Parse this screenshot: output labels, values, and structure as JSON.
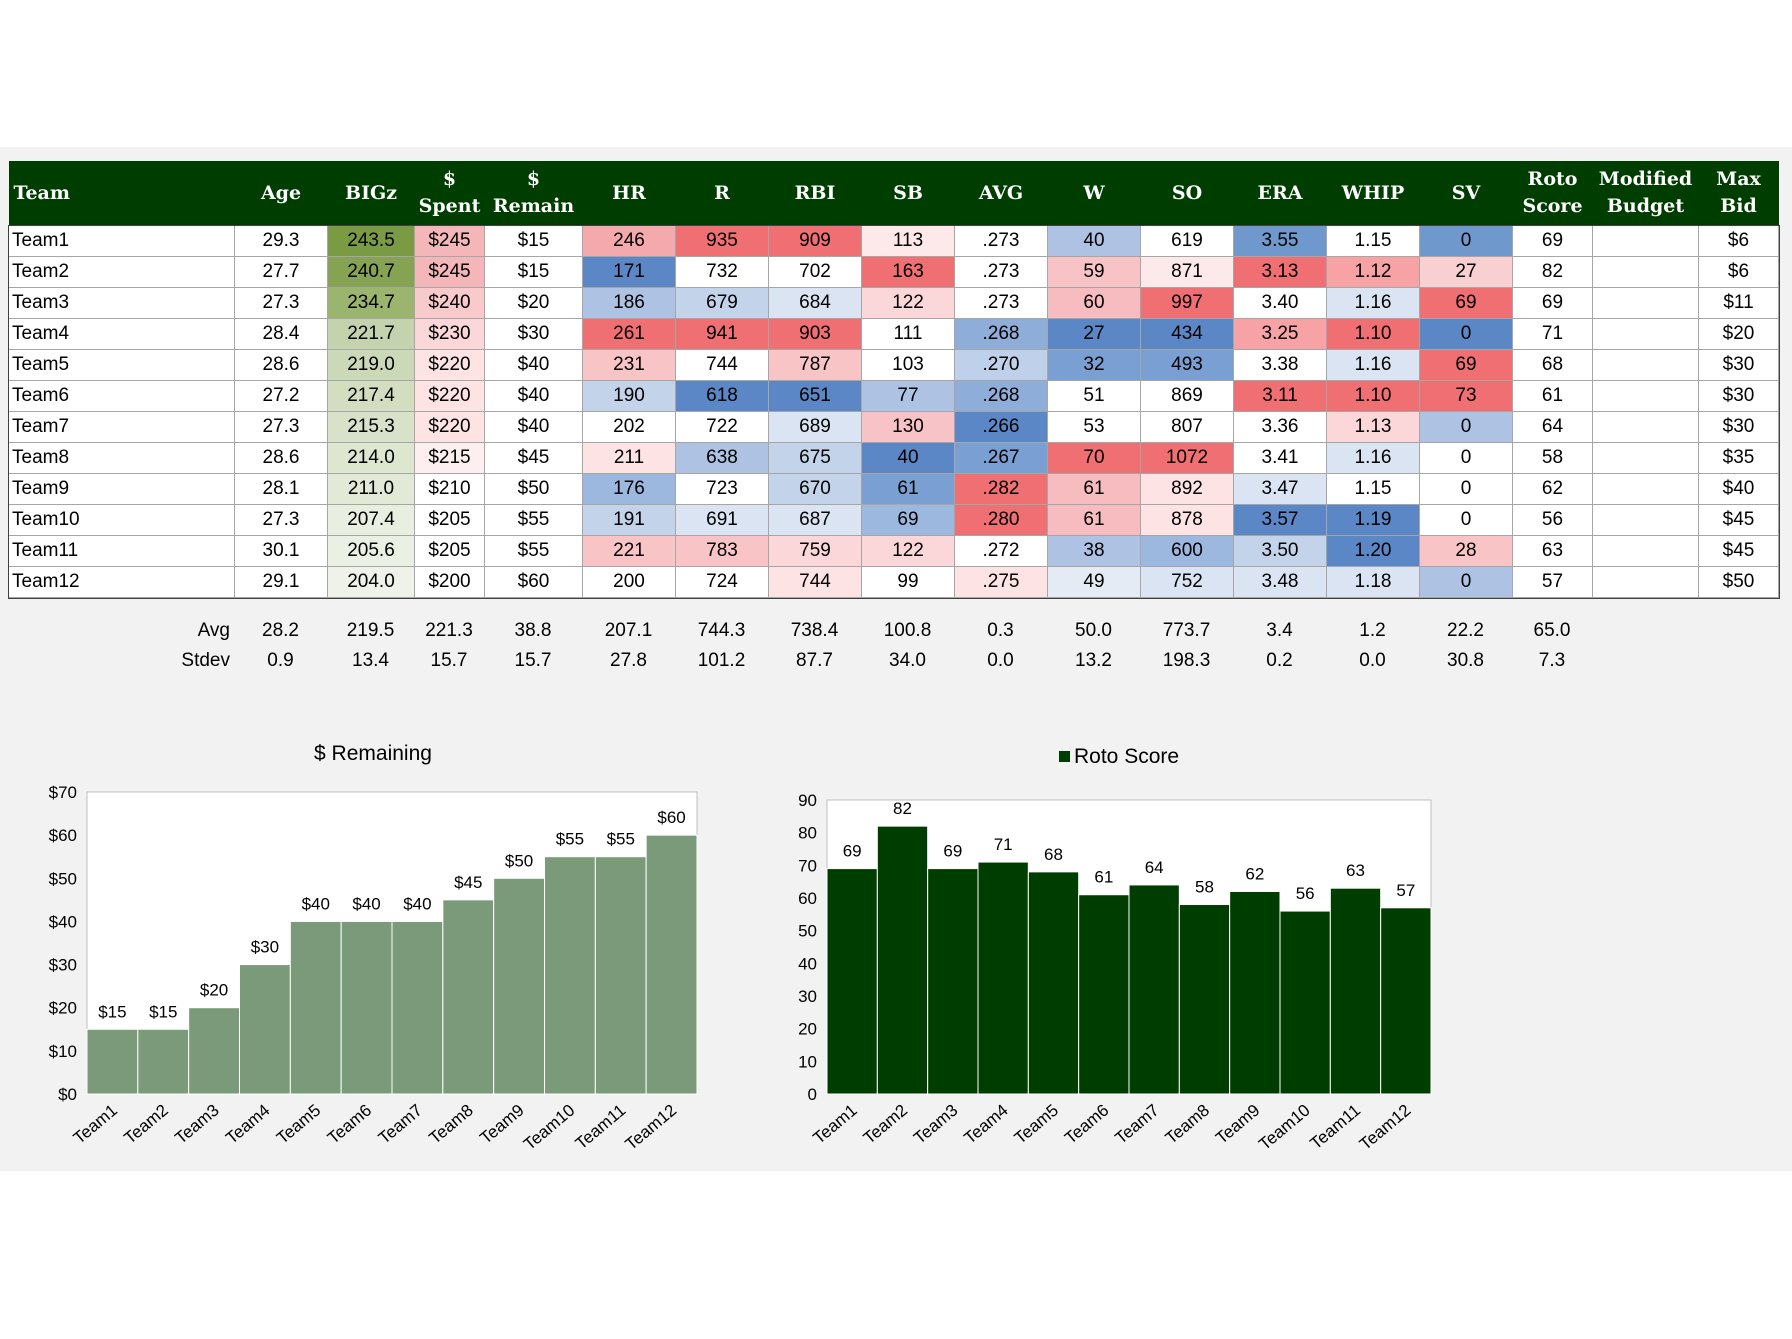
{
  "table": {
    "columns": [
      "Team",
      "Age",
      "BIGz",
      "$\nSpent",
      "$\nRemain",
      "HR",
      "R",
      "RBI",
      "SB",
      "AVG",
      "W",
      "SO",
      "ERA",
      "WHIP",
      "SV",
      "Roto\nScore",
      "Modified\nBudget",
      "Max\nBid"
    ],
    "rows": [
      [
        "Team1",
        "29.3",
        "243.5",
        "$245",
        "$15",
        "246",
        "935",
        "909",
        "113",
        ".273",
        "40",
        "619",
        "3.55",
        "1.15",
        "0",
        "69",
        "",
        "$6"
      ],
      [
        "Team2",
        "27.7",
        "240.7",
        "$245",
        "$15",
        "171",
        "732",
        "702",
        "163",
        ".273",
        "59",
        "871",
        "3.13",
        "1.12",
        "27",
        "82",
        "",
        "$6"
      ],
      [
        "Team3",
        "27.3",
        "234.7",
        "$240",
        "$20",
        "186",
        "679",
        "684",
        "122",
        ".273",
        "60",
        "997",
        "3.40",
        "1.16",
        "69",
        "69",
        "",
        "$11"
      ],
      [
        "Team4",
        "28.4",
        "221.7",
        "$230",
        "$30",
        "261",
        "941",
        "903",
        "111",
        ".268",
        "27",
        "434",
        "3.25",
        "1.10",
        "0",
        "71",
        "",
        "$20"
      ],
      [
        "Team5",
        "28.6",
        "219.0",
        "$220",
        "$40",
        "231",
        "744",
        "787",
        "103",
        ".270",
        "32",
        "493",
        "3.38",
        "1.16",
        "69",
        "68",
        "",
        "$30"
      ],
      [
        "Team6",
        "27.2",
        "217.4",
        "$220",
        "$40",
        "190",
        "618",
        "651",
        "77",
        ".268",
        "51",
        "869",
        "3.11",
        "1.10",
        "73",
        "61",
        "",
        "$30"
      ],
      [
        "Team7",
        "27.3",
        "215.3",
        "$220",
        "$40",
        "202",
        "722",
        "689",
        "130",
        ".266",
        "53",
        "807",
        "3.36",
        "1.13",
        "0",
        "64",
        "",
        "$30"
      ],
      [
        "Team8",
        "28.6",
        "214.0",
        "$215",
        "$45",
        "211",
        "638",
        "675",
        "40",
        ".267",
        "70",
        "1072",
        "3.41",
        "1.16",
        "0",
        "58",
        "",
        "$35"
      ],
      [
        "Team9",
        "28.1",
        "211.0",
        "$210",
        "$50",
        "176",
        "723",
        "670",
        "61",
        ".282",
        "61",
        "892",
        "3.47",
        "1.15",
        "0",
        "62",
        "",
        "$40"
      ],
      [
        "Team10",
        "27.3",
        "207.4",
        "$205",
        "$55",
        "191",
        "691",
        "687",
        "69",
        ".280",
        "61",
        "878",
        "3.57",
        "1.19",
        "0",
        "56",
        "",
        "$45"
      ],
      [
        "Team11",
        "30.1",
        "205.6",
        "$205",
        "$55",
        "221",
        "783",
        "759",
        "122",
        ".272",
        "38",
        "600",
        "3.50",
        "1.20",
        "28",
        "63",
        "",
        "$45"
      ],
      [
        "Team12",
        "29.1",
        "204.0",
        "$200",
        "$60",
        "200",
        "724",
        "744",
        "99",
        ".275",
        "49",
        "752",
        "3.48",
        "1.18",
        "0",
        "57",
        "",
        "$50"
      ]
    ],
    "cell_colors": [
      [
        "#ffffff",
        "#ffffff",
        "#7a9a44",
        "#f4b6b9",
        "#ffffff",
        "#f4a9ac",
        "#f06f72",
        "#f06f72",
        "#fde9ea",
        "#ffffff",
        "#aec3e3",
        "#ffffff",
        "#6f98cd",
        "#ffffff",
        "#6f98cd",
        "#ffffff",
        "#ffffff",
        "#ffffff"
      ],
      [
        "#ffffff",
        "#ffffff",
        "#86a353",
        "#f4b6b9",
        "#ffffff",
        "#5b87c7",
        "#ffffff",
        "#ffffff",
        "#f06f72",
        "#ffffff",
        "#f7c3c6",
        "#fde9ea",
        "#f06f72",
        "#f7a3a6",
        "#f9d0d2",
        "#ffffff",
        "#ffffff",
        "#ffffff"
      ],
      [
        "#ffffff",
        "#ffffff",
        "#9bb46e",
        "#f8cacc",
        "#ffffff",
        "#aec3e3",
        "#c3d3ea",
        "#dbe4f2",
        "#fbd7d9",
        "#ffffff",
        "#f7bcbf",
        "#f06f72",
        "#ffffff",
        "#dbe4f2",
        "#f06f72",
        "#ffffff",
        "#ffffff",
        "#ffffff"
      ],
      [
        "#ffffff",
        "#ffffff",
        "#c4d3ad",
        "#fbd7d9",
        "#ffffff",
        "#f06f72",
        "#f06f72",
        "#f06f72",
        "#ffffff",
        "#8fadd9",
        "#5b87c7",
        "#5b87c7",
        "#f7a3a6",
        "#f06f72",
        "#5b87c7",
        "#ffffff",
        "#ffffff",
        "#ffffff"
      ],
      [
        "#ffffff",
        "#ffffff",
        "#ccd9b8",
        "#fde3e4",
        "#ffffff",
        "#f9c4c6",
        "#ffffff",
        "#f9c4c6",
        "#ffffff",
        "#bfd0ea",
        "#7a9fd3",
        "#7a9fd3",
        "#ffffff",
        "#dbe4f2",
        "#f06f72",
        "#ffffff",
        "#ffffff",
        "#ffffff"
      ],
      [
        "#ffffff",
        "#ffffff",
        "#d3dec1",
        "#fde3e4",
        "#ffffff",
        "#c3d3ea",
        "#5b87c7",
        "#5b87c7",
        "#aec3e3",
        "#8fadd9",
        "#ffffff",
        "#ffffff",
        "#f06f72",
        "#f06f72",
        "#f06f72",
        "#ffffff",
        "#ffffff",
        "#ffffff"
      ],
      [
        "#ffffff",
        "#ffffff",
        "#d8e2c8",
        "#fde3e4",
        "#ffffff",
        "#ffffff",
        "#ffffff",
        "#dbe4f2",
        "#f7c3c6",
        "#5b87c7",
        "#ffffff",
        "#ffffff",
        "#ffffff",
        "#fbd7d9",
        "#aec3e3",
        "#ffffff",
        "#ffffff",
        "#ffffff"
      ],
      [
        "#ffffff",
        "#ffffff",
        "#dde6cf",
        "#fdeeef",
        "#ffffff",
        "#fde3e4",
        "#aec3e3",
        "#c3d3ea",
        "#5b87c7",
        "#7a9fd3",
        "#f06f72",
        "#f06f72",
        "#ffffff",
        "#dbe4f2",
        "#ffffff",
        "#ffffff",
        "#ffffff",
        "#ffffff"
      ],
      [
        "#ffffff",
        "#ffffff",
        "#e2e9d6",
        "#ffffff",
        "#ffffff",
        "#9db8df",
        "#ffffff",
        "#c3d3ea",
        "#7a9fd3",
        "#f06f72",
        "#f7bcbf",
        "#fde3e4",
        "#dbe4f2",
        "#ffffff",
        "#ffffff",
        "#ffffff",
        "#ffffff",
        "#ffffff"
      ],
      [
        "#ffffff",
        "#ffffff",
        "#e8eee0",
        "#ffffff",
        "#ffffff",
        "#c3d3ea",
        "#dbe4f2",
        "#dbe4f2",
        "#9db8df",
        "#f06f72",
        "#f7bcbf",
        "#fde3e4",
        "#5b87c7",
        "#5b87c7",
        "#ffffff",
        "#ffffff",
        "#ffffff",
        "#ffffff"
      ],
      [
        "#ffffff",
        "#ffffff",
        "#ebf0e4",
        "#ffffff",
        "#ffffff",
        "#f9c4c6",
        "#f9c4c6",
        "#fbd7d9",
        "#fbd7d9",
        "#ffffff",
        "#aec3e3",
        "#9db8df",
        "#c3d3ea",
        "#5b87c7",
        "#f9c4c6",
        "#ffffff",
        "#ffffff",
        "#ffffff"
      ],
      [
        "#ffffff",
        "#ffffff",
        "#eef2e8",
        "#ffffff",
        "#ffffff",
        "#ffffff",
        "#ffffff",
        "#fde3e4",
        "#ffffff",
        "#fde3e4",
        "#e4ebf5",
        "#dbe4f2",
        "#dbe4f2",
        "#dbe4f2",
        "#aec3e3",
        "#ffffff",
        "#ffffff",
        "#ffffff"
      ]
    ],
    "header_color": "#003d00"
  },
  "stats": {
    "avg_label": "Avg",
    "stdev_label": "Stdev",
    "avg": [
      "28.2",
      "219.5",
      "221.3",
      "38.8",
      "207.1",
      "744.3",
      "738.4",
      "100.8",
      "0.3",
      "50.0",
      "773.7",
      "3.4",
      "1.2",
      "22.2",
      "65.0"
    ],
    "stdev": [
      "0.9",
      "13.4",
      "15.7",
      "15.7",
      "27.8",
      "101.2",
      "87.7",
      "34.0",
      "0.0",
      "13.2",
      "198.3",
      "0.2",
      "0.0",
      "30.8",
      "7.3"
    ]
  },
  "chart_data": [
    {
      "type": "bar",
      "title": "$ Remaining",
      "categories": [
        "Team1",
        "Team2",
        "Team3",
        "Team4",
        "Team5",
        "Team6",
        "Team7",
        "Team8",
        "Team9",
        "Team10",
        "Team11",
        "Team12"
      ],
      "values": [
        15,
        15,
        20,
        30,
        40,
        40,
        40,
        45,
        50,
        55,
        55,
        60
      ],
      "value_labels": [
        "$15",
        "$15",
        "$20",
        "$30",
        "$40",
        "$40",
        "$40",
        "$45",
        "$50",
        "$55",
        "$55",
        "$60"
      ],
      "ylim": [
        0,
        70
      ],
      "yticks": [
        "$0",
        "$10",
        "$20",
        "$30",
        "$40",
        "$50",
        "$60",
        "$70"
      ],
      "grid": false,
      "legend": "none",
      "color": "#7a9a7a"
    },
    {
      "type": "bar",
      "title": "",
      "categories": [
        "Team1",
        "Team2",
        "Team3",
        "Team4",
        "Team5",
        "Team6",
        "Team7",
        "Team8",
        "Team9",
        "Team10",
        "Team11",
        "Team12"
      ],
      "series": [
        {
          "name": "Roto Score",
          "values": [
            69,
            82,
            69,
            71,
            68,
            61,
            64,
            58,
            62,
            56,
            63,
            57
          ]
        }
      ],
      "value_labels": [
        "69",
        "82",
        "69",
        "71",
        "68",
        "61",
        "64",
        "58",
        "62",
        "56",
        "63",
        "57"
      ],
      "ylim": [
        0,
        90
      ],
      "yticks": [
        "0",
        "10",
        "20",
        "30",
        "40",
        "50",
        "60",
        "70",
        "80",
        "90"
      ],
      "grid": false,
      "legend": "top",
      "color": "#003d00"
    }
  ]
}
